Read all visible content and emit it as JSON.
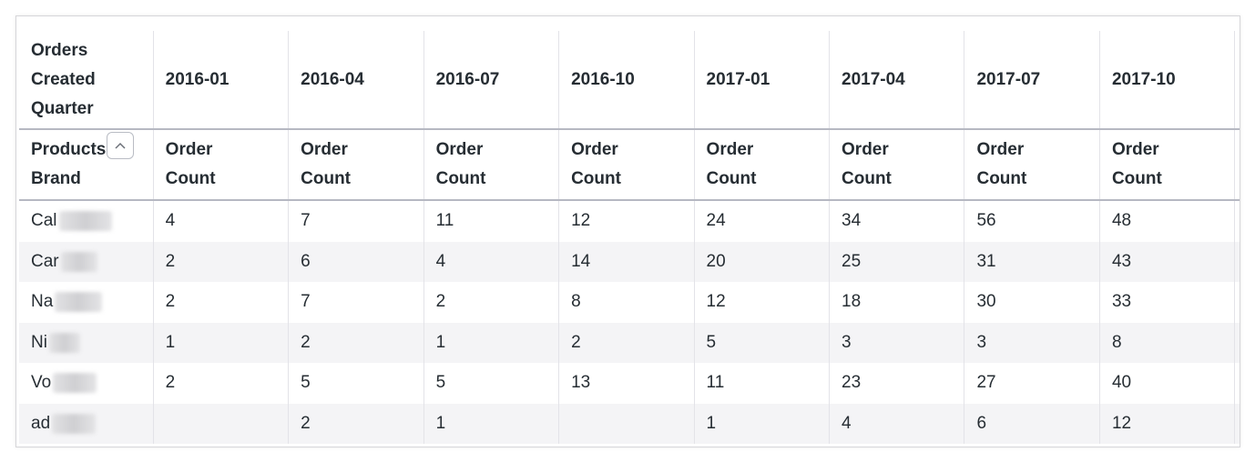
{
  "header": {
    "pivot_label": "Orders Created Quarter",
    "row_label_line1": "Products",
    "row_label_line2": "Brand",
    "sort_icon": "chevron-up-icon",
    "quarters": [
      "2016-01",
      "2016-04",
      "2016-07",
      "2016-10",
      "2017-01",
      "2017-04",
      "2017-07",
      "2017-10"
    ],
    "measure_line1": "Order",
    "measure_line2": "Count"
  },
  "rows": [
    {
      "brand": "Cal",
      "values": [
        "4",
        "7",
        "11",
        "12",
        "24",
        "34",
        "56",
        "48"
      ]
    },
    {
      "brand": "Car",
      "values": [
        "2",
        "6",
        "4",
        "14",
        "20",
        "25",
        "31",
        "43"
      ]
    },
    {
      "brand": "Na",
      "values": [
        "2",
        "7",
        "2",
        "8",
        "12",
        "18",
        "30",
        "33"
      ]
    },
    {
      "brand": "Ni",
      "values": [
        "1",
        "2",
        "1",
        "2",
        "5",
        "3",
        "3",
        "8"
      ]
    },
    {
      "brand": "Vo",
      "values": [
        "2",
        "5",
        "5",
        "13",
        "11",
        "23",
        "27",
        "40"
      ]
    },
    {
      "brand": "ad",
      "values": [
        "",
        "2",
        "1",
        "",
        "1",
        "4",
        "6",
        "12"
      ]
    }
  ]
}
